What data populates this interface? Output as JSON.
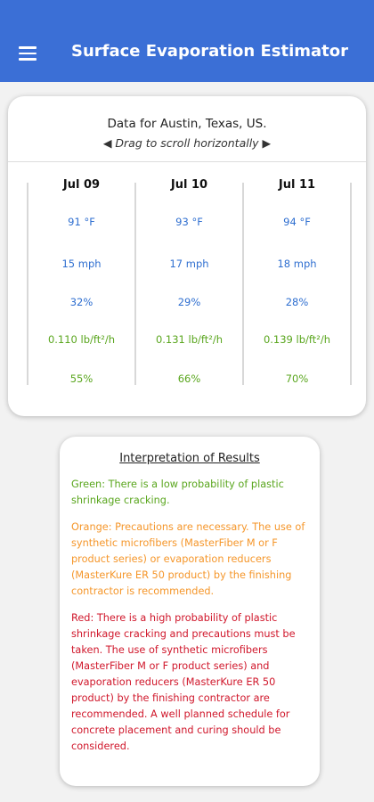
{
  "header": {
    "title": "Surface Evaporation Estimator"
  },
  "data_card": {
    "title": "Data for Austin, Texas, US.",
    "hint": "◀ Drag to scroll horizontally ▶",
    "columns": [
      {
        "date": "Jul 09",
        "temperature": "91 °F",
        "wind": "15 mph",
        "humidity": "32%",
        "evaporation": "0.110 lb/ft²/h",
        "probability": "55%"
      },
      {
        "date": "Jul 10",
        "temperature": "93 °F",
        "wind": "17 mph",
        "humidity": "29%",
        "evaporation": "0.131 lb/ft²/h",
        "probability": "66%"
      },
      {
        "date": "Jul 11",
        "temperature": "94 °F",
        "wind": "18 mph",
        "humidity": "28%",
        "evaporation": "0.139 lb/ft²/h",
        "probability": "70%"
      }
    ]
  },
  "interpretation": {
    "title": "Interpretation of Results",
    "paragraphs": [
      "Green: There is a low probability of plastic shrinkage cracking.",
      "Orange: Precautions are necessary. The use of synthetic microfibers (MasterFiber M or F product series) or evaporation reducers (MasterKure ER 50 product) by the finishing contractor is recommended.",
      "Red: There is a high probability of plastic shrinkage cracking and precautions must be taken. The use of synthetic microfibers (MasterFiber M or F product series) and evaporation reducers (MasterKure ER 50 product) by the finishing contractor are recommended. A well planned schedule for concrete placement and curing should be considered."
    ]
  }
}
